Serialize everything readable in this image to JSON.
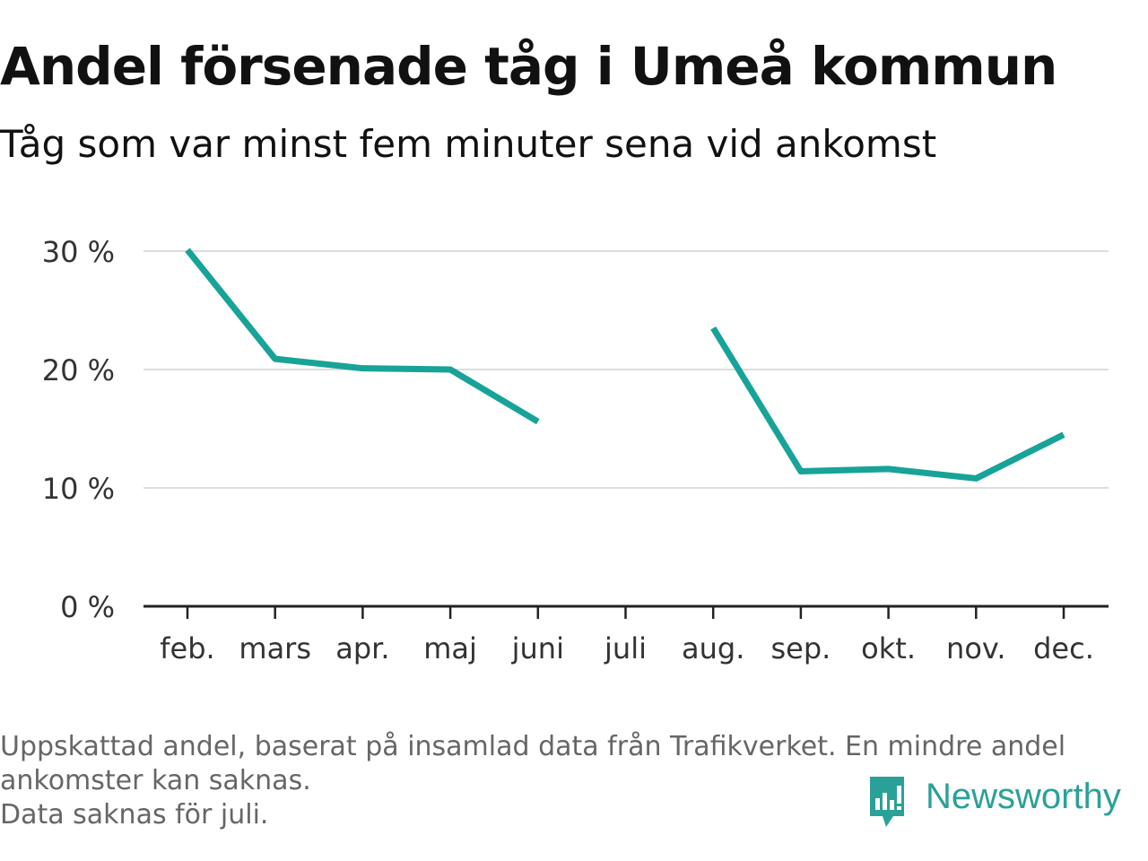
{
  "header": {
    "title": "Andel försenade tåg i Umeå kommun",
    "subtitle": "Tåg som var minst fem minuter sena vid ankomst"
  },
  "chart_data": {
    "type": "line",
    "title": "Andel försenade tåg i Umeå kommun",
    "subtitle": "Tåg som var minst fem minuter sena vid ankomst",
    "categories": [
      "feb.",
      "mars",
      "apr.",
      "maj",
      "juni",
      "juli",
      "aug.",
      "sep.",
      "okt.",
      "nov.",
      "dec."
    ],
    "series": [
      {
        "values": [
          30.1,
          20.9,
          20.1,
          20.0,
          15.6,
          null,
          23.5,
          11.4,
          11.6,
          10.8,
          14.5
        ]
      }
    ],
    "ylim": [
      0,
      30
    ],
    "yticks": [
      0,
      10,
      20,
      30
    ],
    "ytick_labels": [
      "0 %",
      "10 %",
      "20 %",
      "30 %"
    ],
    "xlabel": "",
    "ylabel": "",
    "grid": true,
    "legend": "none",
    "line_color": "#17a398"
  },
  "footer": {
    "note_line1": "Uppskattad andel, baserat på insamlad data från Trafikverket. En mindre andel",
    "note_line2": "ankomster kan saknas.",
    "note_line3": "Data saknas för juli.",
    "brand": "Newsworthy",
    "brand_color": "#2aa198"
  }
}
